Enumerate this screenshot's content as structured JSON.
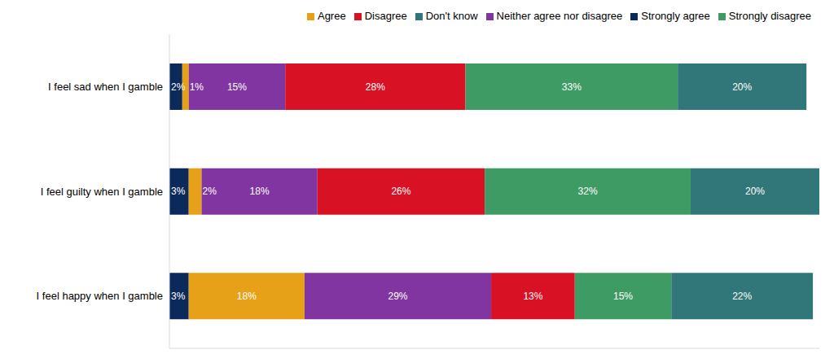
{
  "chart_data": {
    "type": "bar",
    "orientation": "horizontal",
    "stacked": true,
    "data_labels": true,
    "legend": "top",
    "grid": false,
    "tick_labels": "y",
    "xlim": [
      0,
      101
    ],
    "categories": [
      "I feel sad when I gamble",
      "I feel guilty when I gamble",
      "I feel happy when I gamble"
    ],
    "series": [
      {
        "name": "Strongly agree",
        "color": "#0b2a5b",
        "values": [
          2,
          3,
          3
        ],
        "value_labels": [
          "2%",
          "3%",
          "3%"
        ]
      },
      {
        "name": "Agree",
        "color": "#e6a118",
        "values": [
          1,
          2,
          18
        ],
        "value_labels": [
          "1%",
          "2%",
          "18%"
        ]
      },
      {
        "name": "Neither agree nor disagree",
        "color": "#8135a0",
        "values": [
          15,
          18,
          29
        ],
        "value_labels": [
          "15%",
          "18%",
          "29%"
        ]
      },
      {
        "name": "Disagree",
        "color": "#d91124",
        "values": [
          28,
          26,
          13
        ],
        "value_labels": [
          "28%",
          "26%",
          "13%"
        ]
      },
      {
        "name": "Strongly disagree",
        "color": "#3f9b64",
        "values": [
          33,
          32,
          15
        ],
        "value_labels": [
          "33%",
          "32%",
          "15%"
        ]
      },
      {
        "name": "Don't know",
        "color": "#317678",
        "values": [
          20,
          20,
          22
        ],
        "value_labels": [
          "20%",
          "20%",
          "22%"
        ]
      }
    ]
  }
}
